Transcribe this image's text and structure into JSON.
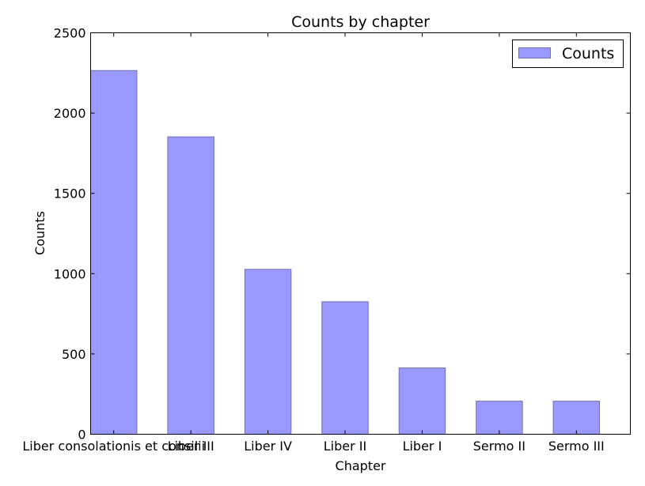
{
  "chart_data": {
    "type": "bar",
    "title": "Counts by chapter",
    "xlabel": "Chapter",
    "ylabel": "Counts",
    "categories": [
      "Liber consolationis et consilii",
      "Liber III",
      "Liber IV",
      "Liber II",
      "Liber I",
      "Sermo II",
      "Sermo III"
    ],
    "series": [
      {
        "name": "Counts",
        "values": [
          2265,
          1852,
          1027,
          825,
          413,
          206,
          206
        ],
        "color": "#9999ff"
      }
    ],
    "ylim": [
      0,
      2500
    ],
    "yticks": [
      "0",
      "500",
      "1000",
      "1500",
      "2000",
      "2500"
    ],
    "grid": false,
    "legend_position": "top-right"
  }
}
